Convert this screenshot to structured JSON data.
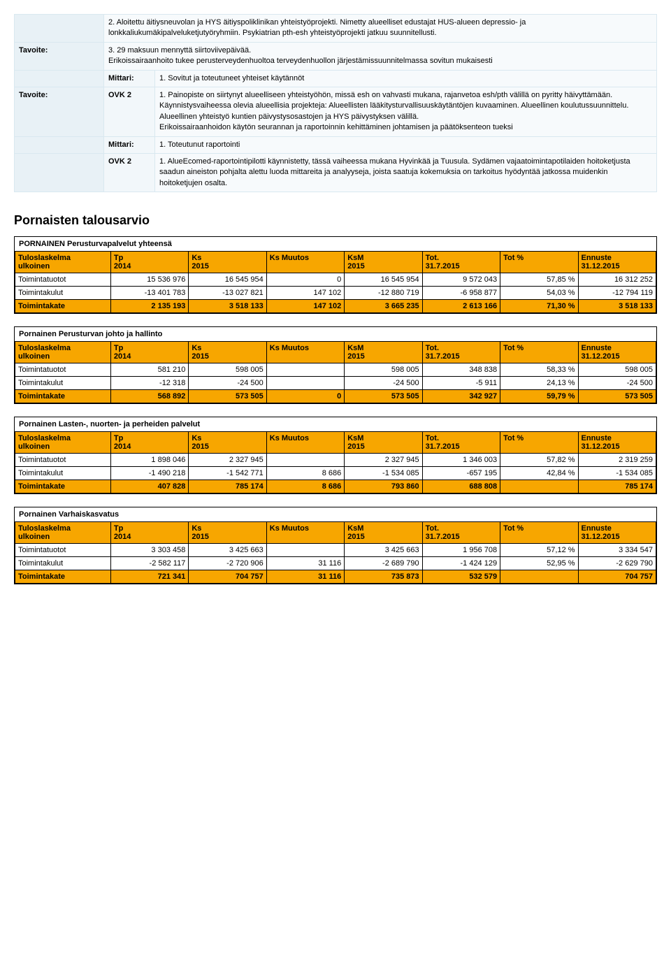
{
  "top": {
    "rows": [
      {
        "label": "",
        "key": "",
        "content": "2. Aloitettu äitiysneuvolan ja HYS äitiyspoliklinikan yhteistyöprojekti. Nimetty alueelliset edustajat HUS-alueen depressio- ja lonkkaliukumäkipalveluketjutyöryhmiin. Psykiatrian pth-esh yhteistyöprojekti jatkuu suunnitellusti."
      },
      {
        "label": "Tavoite:",
        "key": "",
        "content": "3. 29 maksuun mennyttä siirtoviivepäivää.\nErikoissairaanhoito tukee perusterveydenhuoltoa terveydenhuollon järjestämissuunnitelmassa sovitun mukaisesti"
      },
      {
        "label": "",
        "key": "Mittari:",
        "content": "1. Sovitut ja toteutuneet yhteiset käytännöt"
      },
      {
        "label": "Tavoite:",
        "key": "OVK 2",
        "content": "1. Painopiste on siirtynyt alueelliseen yhteistyöhön, missä esh on vahvasti mukana, rajanvetoa esh/pth välillä on pyritty häivyttämään. Käynnistysvaiheessa olevia alueellisia projekteja: Alueellisten lääkitysturvallisuuskäytäntöjen kuvaaminen. Alueellinen koulutussuunnittelu. Alueellinen yhteistyö kuntien päivystysosastojen ja HYS päivystyksen välillä.\nErikoissairaanhoidon käytön seurannan ja raportoinnin kehittäminen johtamisen ja päätöksenteon tueksi"
      },
      {
        "label": "",
        "key": "Mittari:",
        "content": "1. Toteutunut raportointi"
      },
      {
        "label": "",
        "key": "OVK 2",
        "content": "1. AlueEcomed-raportointipilotti käynnistetty, tässä vaiheessa mukana Hyvinkää ja Tuusula. Sydämen vajaatoimintapotilaiden hoitoketjusta saadun aineiston pohjalta alettu luoda mittareita ja analyyseja, joista saatuja kokemuksia on tarkoitus hyödyntää jatkossa muidenkin hoitoketjujen osalta."
      }
    ]
  },
  "section_title": "Pornaisten talousarvio",
  "header_cols": [
    {
      "l1": "Tuloslaskelma",
      "l2": "ulkoinen"
    },
    {
      "l1": "Tp",
      "l2": "2014"
    },
    {
      "l1": "Ks",
      "l2": "2015"
    },
    {
      "l1": "Ks Muutos",
      "l2": ""
    },
    {
      "l1": "KsM",
      "l2": "2015"
    },
    {
      "l1": "Tot.",
      "l2": "31.7.2015"
    },
    {
      "l1": "Tot %",
      "l2": ""
    },
    {
      "l1": "Ennuste",
      "l2": "31.12.2015"
    }
  ],
  "row_labels": {
    "tuotot": "Toimintatuotot",
    "kulut": "Toimintakulut",
    "kate": "Toimintakate"
  },
  "tables": [
    {
      "title": "PORNAINEN Perusturvapalvelut yhteensä",
      "rows": [
        {
          "k": "tuotot",
          "v": [
            "15 536 976",
            "16 545 954",
            "0",
            "16 545 954",
            "9 572 043",
            "57,85 %",
            "16 312 252"
          ]
        },
        {
          "k": "kulut",
          "v": [
            "-13 401 783",
            "-13 027 821",
            "147 102",
            "-12 880 719",
            "-6 958 877",
            "54,03 %",
            "-12 794 119"
          ]
        },
        {
          "k": "kate",
          "v": [
            "2 135 193",
            "3 518 133",
            "147 102",
            "3 665 235",
            "2 613 166",
            "71,30 %",
            "3 518 133"
          ]
        }
      ]
    },
    {
      "title": "Pornainen Perusturvan johto ja hallinto",
      "rows": [
        {
          "k": "tuotot",
          "v": [
            "581 210",
            "598 005",
            "",
            "598 005",
            "348 838",
            "58,33 %",
            "598 005"
          ]
        },
        {
          "k": "kulut",
          "v": [
            "-12 318",
            "-24 500",
            "",
            "-24 500",
            "-5 911",
            "24,13 %",
            "-24 500"
          ]
        },
        {
          "k": "kate",
          "v": [
            "568 892",
            "573 505",
            "0",
            "573 505",
            "342 927",
            "59,79 %",
            "573 505"
          ]
        }
      ]
    },
    {
      "title": "Pornainen Lasten-, nuorten- ja perheiden palvelut",
      "rows": [
        {
          "k": "tuotot",
          "v": [
            "1 898 046",
            "2 327 945",
            "",
            "2 327 945",
            "1 346 003",
            "57,82 %",
            "2 319 259"
          ]
        },
        {
          "k": "kulut",
          "v": [
            "-1 490 218",
            "-1 542 771",
            "8 686",
            "-1 534 085",
            "-657 195",
            "42,84 %",
            "-1 534 085"
          ]
        },
        {
          "k": "kate",
          "v": [
            "407 828",
            "785 174",
            "8 686",
            "793 860",
            "688 808",
            "",
            "785 174"
          ]
        }
      ]
    },
    {
      "title": "Pornainen Varhaiskasvatus",
      "rows": [
        {
          "k": "tuotot",
          "v": [
            "3 303 458",
            "3 425 663",
            "",
            "3 425 663",
            "1 956 708",
            "57,12 %",
            "3 334 547"
          ]
        },
        {
          "k": "kulut",
          "v": [
            "-2 582 117",
            "-2 720 906",
            "31 116",
            "-2 689 790",
            "-1 424 129",
            "52,95 %",
            "-2 629 790"
          ]
        },
        {
          "k": "kate",
          "v": [
            "721 341",
            "704 757",
            "31 116",
            "735 873",
            "532 579",
            "",
            "704 757"
          ]
        }
      ]
    }
  ],
  "colors": {
    "orange": "#f7a600",
    "top_bg": "#f2f7fa",
    "top_border": "#d9e8f0"
  }
}
